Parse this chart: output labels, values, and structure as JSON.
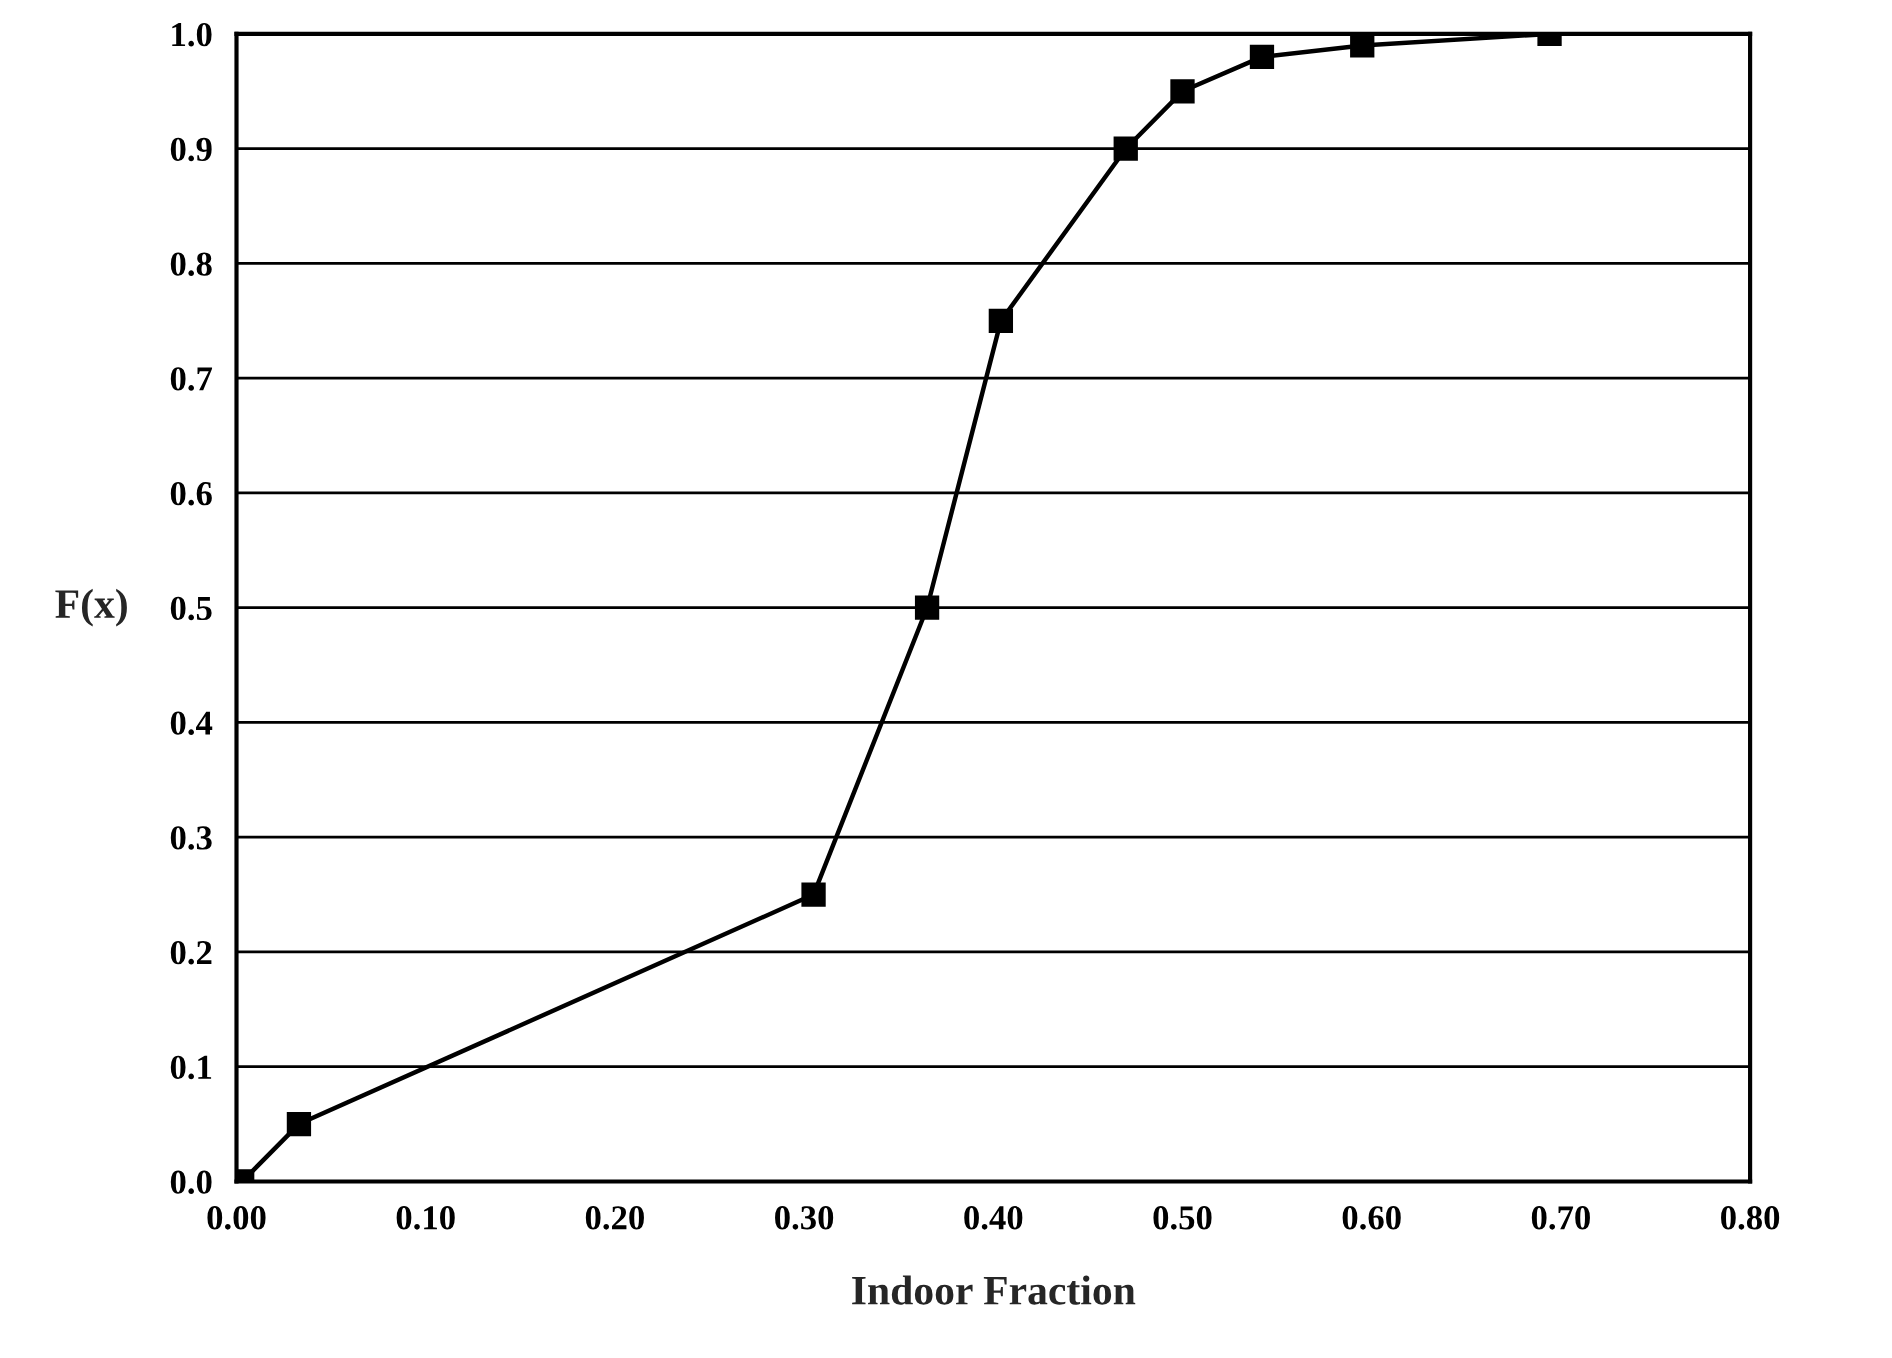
{
  "chart_data": {
    "type": "line",
    "xlabel": "Indoor Fraction",
    "ylabel": "F(x)",
    "series": [
      {
        "color": "#000000",
        "x": [
          0.003,
          0.033,
          0.305,
          0.365,
          0.404,
          0.47,
          0.5,
          0.542,
          0.595,
          0.694
        ],
        "values": [
          0.0,
          0.05,
          0.25,
          0.5,
          0.75,
          0.9,
          0.95,
          0.98,
          0.99,
          1.0
        ]
      }
    ],
    "xlim": [
      0,
      0.8
    ],
    "xticks": [
      {
        "value": 0,
        "label": "0.00"
      },
      {
        "value": 0.1,
        "label": "0.10"
      },
      {
        "value": 0.2,
        "label": "0.20"
      },
      {
        "value": 0.3,
        "label": "0.30"
      },
      {
        "value": 0.4,
        "label": "0.40"
      },
      {
        "value": 0.5,
        "label": "0.50"
      },
      {
        "value": 0.6,
        "label": "0.60"
      },
      {
        "value": 0.7,
        "label": "0.70"
      },
      {
        "value": 0.8,
        "label": "0.80"
      }
    ],
    "ylim": [
      0,
      1
    ],
    "yticks": [
      {
        "value": 0,
        "label": "0.0"
      },
      {
        "value": 0.1,
        "label": "0.1"
      },
      {
        "value": 0.2,
        "label": "0.2"
      },
      {
        "value": 0.3,
        "label": "0.3"
      },
      {
        "value": 0.4,
        "label": "0.4"
      },
      {
        "value": 0.5,
        "label": "0.5"
      },
      {
        "value": 0.6,
        "label": "0.6"
      },
      {
        "value": 0.7,
        "label": "0.7"
      },
      {
        "value": 0.8,
        "label": "0.8"
      },
      {
        "value": 0.9,
        "label": "0.9"
      },
      {
        "value": 1,
        "label": "1.0"
      }
    ],
    "grid": "y",
    "marker": "square",
    "line_style": "solid"
  }
}
